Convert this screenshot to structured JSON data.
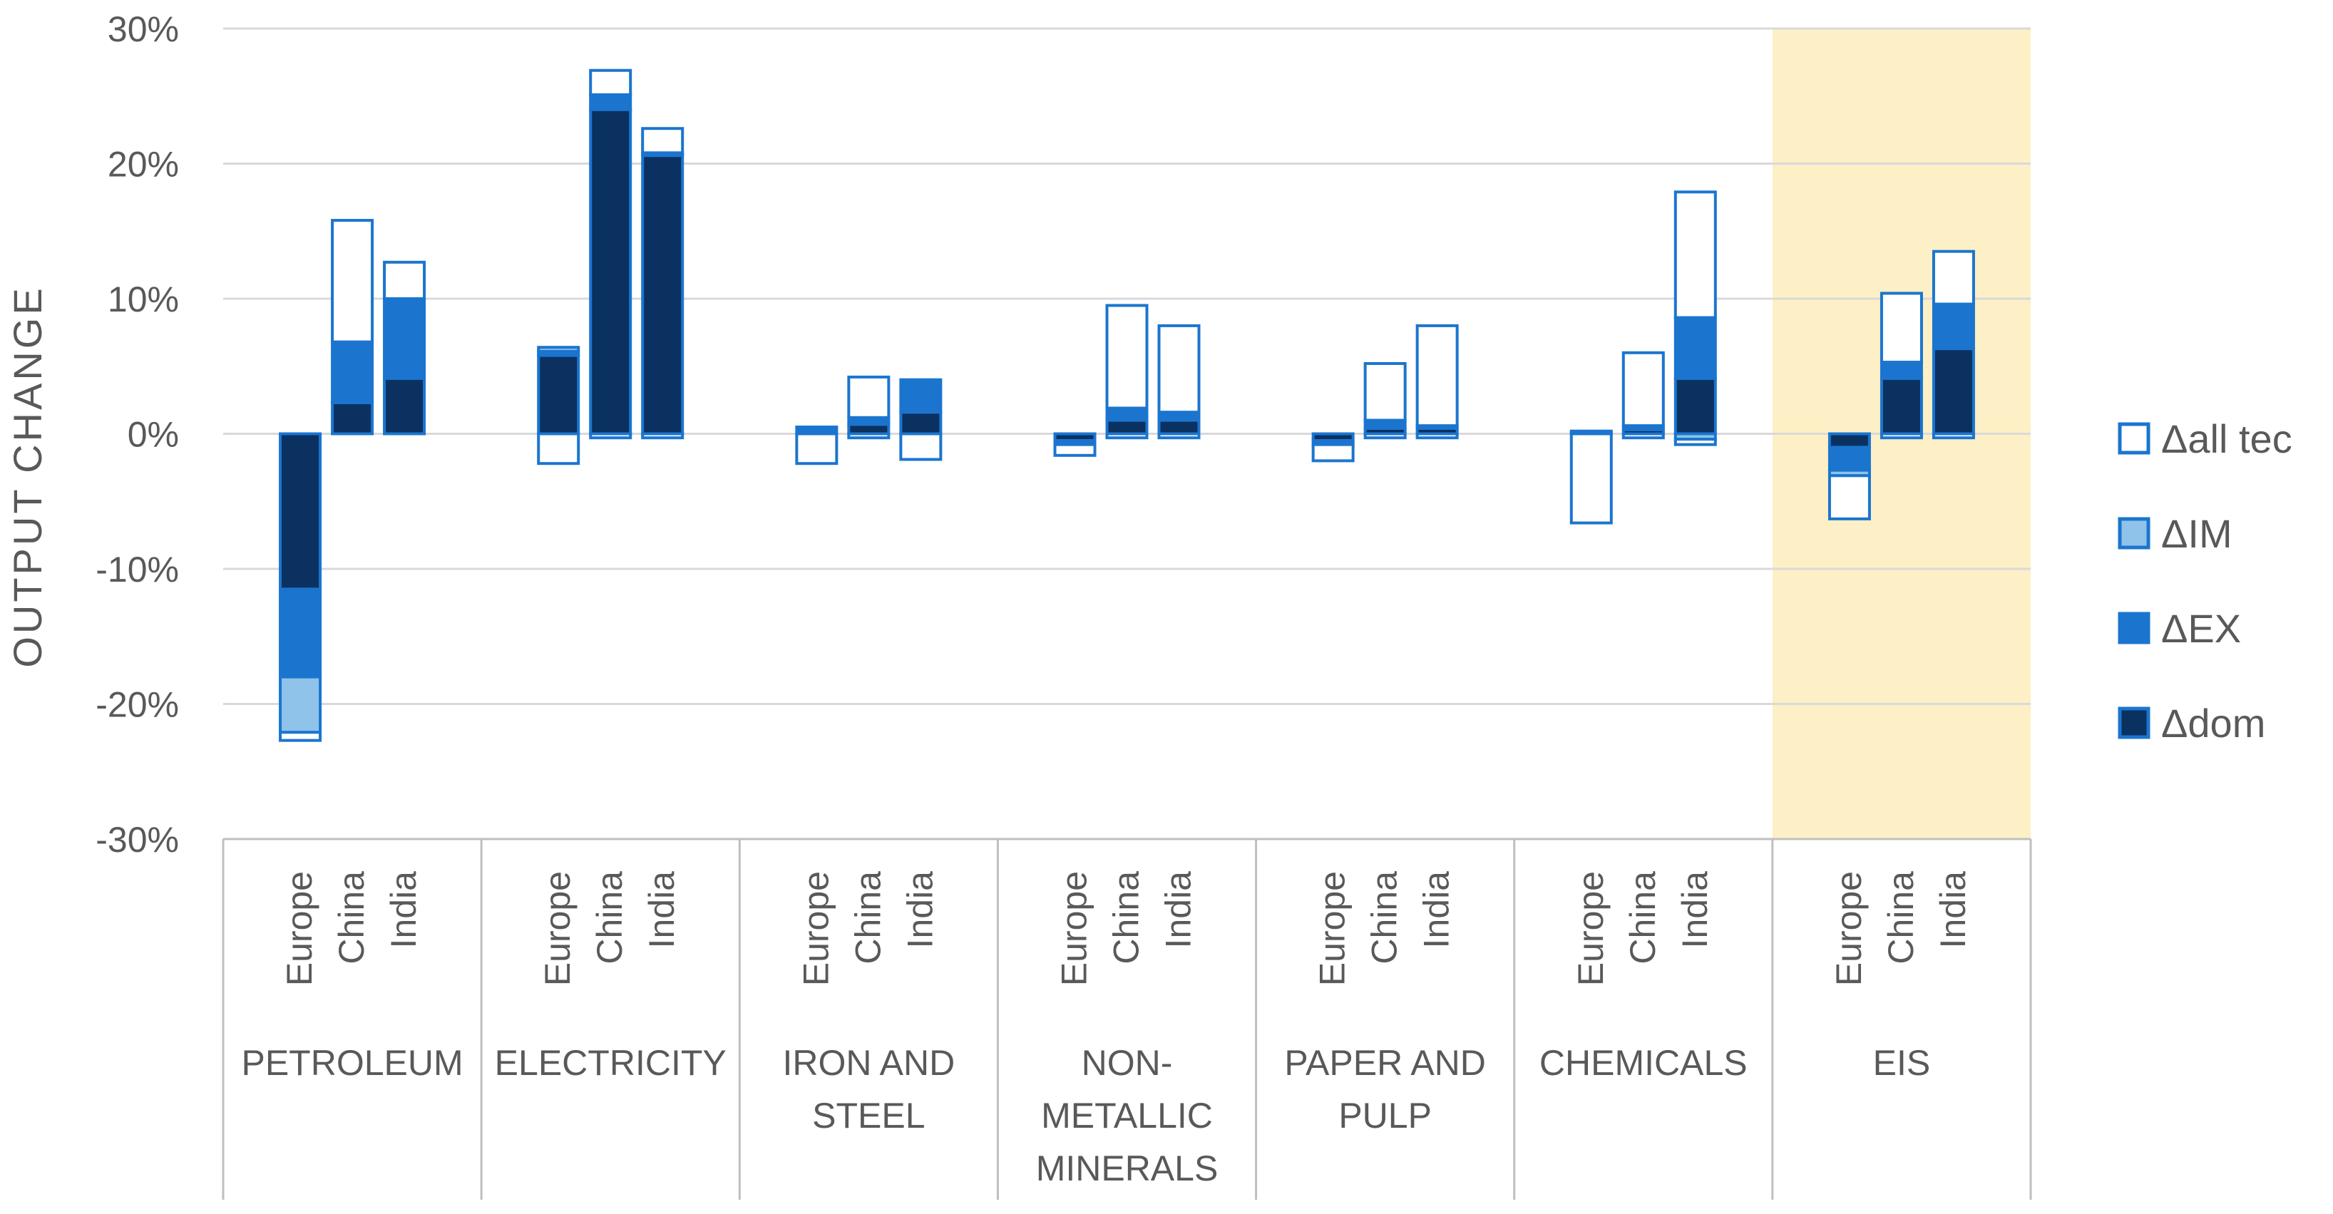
{
  "chart_data": {
    "type": "bar",
    "stacked": true,
    "ylabel": "OUTPUT CHANGE",
    "ylim": [
      -30,
      30
    ],
    "yticks": [
      "30%",
      "20%",
      "10%",
      "0%",
      "-10%",
      "-20%",
      "-30%"
    ],
    "highlight_group": "EIS",
    "colors": {
      "dom": "#0b3161",
      "EX": "#1b75cf",
      "IM": "#8fc3ea",
      "alltec": "#ffffff",
      "border": "#1b75cf",
      "highlight": "#fdf0c6",
      "grid": "#d9d9d9",
      "axis": "#bfbfbf"
    },
    "legend": [
      {
        "key": "alltec",
        "label": "Δall tec"
      },
      {
        "key": "IM",
        "label": "ΔIM"
      },
      {
        "key": "EX",
        "label": "ΔEX"
      },
      {
        "key": "dom",
        "label": "Δdom"
      }
    ],
    "groups": [
      {
        "name": "PETROLEUM",
        "lines": [
          "PETROLEUM"
        ],
        "bars": [
          {
            "region": "Europe",
            "pos": [
              0,
              0,
              0,
              0
            ],
            "neg": [
              -11.5,
              -6.5,
              -4.1,
              -0.6
            ]
          },
          {
            "region": "China",
            "pos": [
              2.3,
              4.5,
              0,
              9.0
            ],
            "neg": [
              0,
              0,
              0,
              0
            ]
          },
          {
            "region": "India",
            "pos": [
              4.1,
              5.9,
              0,
              2.7
            ],
            "neg": [
              0,
              0,
              0,
              0
            ]
          }
        ]
      },
      {
        "name": "ELECTRICITY",
        "lines": [
          "ELECTRICITY"
        ],
        "bars": [
          {
            "region": "Europe",
            "pos": [
              5.8,
              0.3,
              0.3,
              0
            ],
            "neg": [
              0,
              0,
              0,
              -2.2
            ]
          },
          {
            "region": "China",
            "pos": [
              24.0,
              1.1,
              0,
              1.8
            ],
            "neg": [
              0,
              0,
              0,
              -0.3
            ]
          },
          {
            "region": "India",
            "pos": [
              20.6,
              0.2,
              0,
              1.8
            ],
            "neg": [
              0,
              0,
              0,
              -0.3
            ]
          }
        ]
      },
      {
        "name": "IRON AND STEEL",
        "lines": [
          "IRON AND",
          "STEEL"
        ],
        "bars": [
          {
            "region": "Europe",
            "pos": [
              0,
              0.5,
              0,
              0
            ],
            "neg": [
              0,
              0,
              0,
              -2.2
            ]
          },
          {
            "region": "China",
            "pos": [
              0.7,
              0.5,
              0,
              3.0
            ],
            "neg": [
              0,
              0,
              0,
              -0.3
            ]
          },
          {
            "region": "India",
            "pos": [
              1.6,
              2.4,
              0,
              0
            ],
            "neg": [
              0,
              0,
              0,
              -1.9
            ]
          }
        ]
      },
      {
        "name": "NON-METALLIC MINERALS",
        "lines": [
          "NON-",
          "METALLIC",
          "MINERALS"
        ],
        "bars": [
          {
            "region": "Europe",
            "pos": [
              0,
              0,
              0,
              0
            ],
            "neg": [
              -0.5,
              -0.3,
              0,
              -0.8
            ]
          },
          {
            "region": "China",
            "pos": [
              1.0,
              0.9,
              0,
              7.6
            ],
            "neg": [
              0,
              0,
              0,
              -0.3
            ]
          },
          {
            "region": "India",
            "pos": [
              1.0,
              0.6,
              0,
              6.4
            ],
            "neg": [
              0,
              0,
              0,
              -0.3
            ]
          }
        ]
      },
      {
        "name": "PAPER AND PULP",
        "lines": [
          "PAPER AND",
          "PULP"
        ],
        "bars": [
          {
            "region": "Europe",
            "pos": [
              0,
              0,
              0,
              0
            ],
            "neg": [
              -0.5,
              -0.3,
              0,
              -1.2
            ]
          },
          {
            "region": "China",
            "pos": [
              0.4,
              0.6,
              0,
              4.2
            ],
            "neg": [
              0,
              0,
              0,
              -0.3
            ]
          },
          {
            "region": "India",
            "pos": [
              0.4,
              0.2,
              0,
              7.4
            ],
            "neg": [
              0,
              0,
              0,
              -0.3
            ]
          }
        ]
      },
      {
        "name": "CHEMICALS",
        "lines": [
          "CHEMICALS"
        ],
        "bars": [
          {
            "region": "Europe",
            "pos": [
              0,
              0.1,
              0,
              0.1
            ],
            "neg": [
              0,
              0,
              0,
              -6.6
            ]
          },
          {
            "region": "China",
            "pos": [
              0.3,
              0.3,
              0,
              5.4
            ],
            "neg": [
              0,
              0,
              0,
              -0.3
            ]
          },
          {
            "region": "India",
            "pos": [
              4.1,
              4.5,
              0,
              9.3
            ],
            "neg": [
              0,
              0,
              -0.4,
              -0.4
            ]
          }
        ]
      },
      {
        "name": "EIS",
        "lines": [
          "EIS"
        ],
        "bars": [
          {
            "region": "Europe",
            "pos": [
              0,
              0,
              0,
              0
            ],
            "neg": [
              -1.0,
              -1.7,
              -0.4,
              -3.2
            ]
          },
          {
            "region": "China",
            "pos": [
              4.1,
              1.2,
              0,
              5.1
            ],
            "neg": [
              0,
              0,
              0,
              -0.3
            ]
          },
          {
            "region": "India",
            "pos": [
              6.3,
              3.3,
              0,
              3.9
            ],
            "neg": [
              0,
              0,
              0,
              -0.3
            ]
          }
        ]
      }
    ]
  }
}
